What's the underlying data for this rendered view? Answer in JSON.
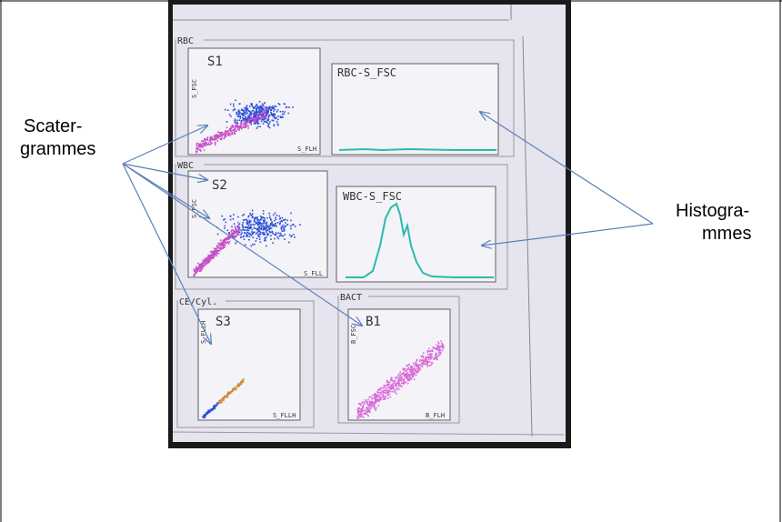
{
  "annotations": {
    "scattergrams": [
      "Scater-",
      "grammes"
    ],
    "histograms": [
      "Histogra-",
      "mmes"
    ]
  },
  "screen": {
    "groups": [
      {
        "label": "RBC",
        "panels": [
          {
            "title": "S1",
            "y_label": "S_FSC",
            "x_label": "S_FLH"
          },
          {
            "title": "RBC-S_FSC"
          }
        ]
      },
      {
        "label": "WBC",
        "panels": [
          {
            "title": "S2",
            "y_label": "S_FSC",
            "x_label": "S_FLL"
          },
          {
            "title": "WBC-S_FSC"
          }
        ]
      },
      {
        "label": "CE/Cyl.",
        "panels": [
          {
            "title": "S3",
            "y_label": "S_FLLH",
            "x_label": "S_FLLH"
          }
        ]
      },
      {
        "label": "BACT",
        "panels": [
          {
            "title": "B1",
            "y_label": "B_FSC",
            "x_label": "B_FLH"
          }
        ]
      }
    ]
  }
}
